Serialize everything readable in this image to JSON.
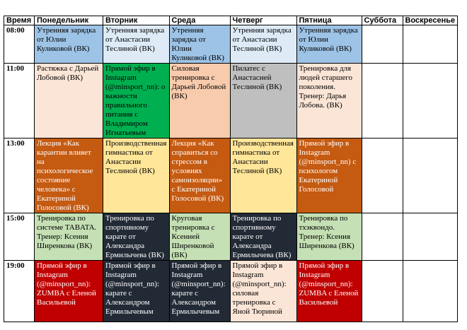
{
  "header": {
    "time": "Время",
    "days": [
      "Понедельник",
      "Вторник",
      "Среда",
      "Четверг",
      "Пятница",
      "Суббота",
      "Воскресенье"
    ]
  },
  "rows": [
    {
      "time": "08:00",
      "cells": [
        {
          "text": "Утренняя зарядка от Юлии Куликовой (ВК)",
          "color": "#9dc3e6"
        },
        {
          "text": "Утренняя зарядка от Анастасии Теслиной (ВК)",
          "color": "#deebf7"
        },
        {
          "text": "Утренняя зарядка от Юлии Куликовой (ВК)",
          "color": "#9dc3e6"
        },
        {
          "text": "Утренняя зарядка от Анастасии Теслиной (ВК)",
          "color": "#deebf7"
        },
        {
          "text": "Утренняя зарядка от Юлии Куликовой (ВК)",
          "color": "#9dc3e6"
        },
        {
          "text": "",
          "color": "#ffffff"
        },
        {
          "text": "",
          "color": "#ffffff"
        }
      ]
    },
    {
      "time": "11:00",
      "cells": [
        {
          "text": "Растяжка с Дарьей Лобовой (ВК)",
          "color": "#fbe5d6"
        },
        {
          "text": "Прямой эфир в Instagram (@minsport_nn): о важности правильного питания с Владимиром Игнатьевым",
          "color": "#00b050"
        },
        {
          "text": "Силовая тренировка с Дарьей Лобовой (ВК)",
          "color": "#f8cbad"
        },
        {
          "text": "Пилатес с Анастасией Теслиной (ВК)",
          "color": "#bfbfbf"
        },
        {
          "text": "Тренировка для людей старшего поколения. Тренер: Дарья Лобова. (ВК)",
          "color": "#fbe5d6"
        },
        {
          "text": "",
          "color": "#ffffff"
        },
        {
          "text": "",
          "color": "#ffffff"
        }
      ]
    },
    {
      "time": "13:00",
      "cells": [
        {
          "text": "Лекция «Как карантин влияет на психологическое состояние человека» с Екатериной Голосовой (ВК)",
          "color": "#c55a11"
        },
        {
          "text": "Производственная гимнастика от Анастасии Теслиной (ВК)",
          "color": "#ffe699"
        },
        {
          "text": "Лекция «Как справиться со стрессом в условиях самоизоляции» с Екатериной Голосовой (ВК)",
          "color": "#c55a11"
        },
        {
          "text": "Производственная гимнастика от Анастасии Теслиной (ВК)",
          "color": "#ffe699"
        },
        {
          "text": "Прямой эфир в Instagram (@minsport_nn) с психологом Екатериной Голосовой",
          "color": "#c55a11"
        },
        {
          "text": "",
          "color": "#ffffff"
        },
        {
          "text": "",
          "color": "#ffffff"
        }
      ]
    },
    {
      "time": "15:00",
      "cells": [
        {
          "text": "Тренировка по системе TABATA. Тренер: Ксения Ширенкова (ВК)",
          "color": "#c5e0b4"
        },
        {
          "text": "Тренировка по спортивному карате от Александра Ермилычева (ВК)",
          "color": "#222a35"
        },
        {
          "text": "Круговая тренировка с Ксенией Ширенковой (ВК)",
          "color": "#c5e0b4"
        },
        {
          "text": "Тренировка по спортивному карате от Александра Ермилычева (ВК)",
          "color": "#222a35"
        },
        {
          "text": "Тренировка по тхэквондо. Тренер: Ксения Ширенкова (ВК)",
          "color": "#c5e0b4"
        },
        {
          "text": "",
          "color": "#ffffff"
        },
        {
          "text": "",
          "color": "#ffffff"
        }
      ]
    },
    {
      "time": "19:00",
      "cells": [
        {
          "text": "Прямой эфир в Instagram (@minsport_nn): ZUMBA с Еленой Васильевой",
          "color": "#c00000"
        },
        {
          "text": "Прямой эфир в Instagram (@minsport_nn): карате с Александром Ермилычевым",
          "color": "#222a35"
        },
        {
          "text": "Прямой эфир в Instagram (@minsport_nn): карате с Александром Ермилычевым",
          "color": "#222a35"
        },
        {
          "text": "Прямой эфир в Instagram (@minsport_nn): силовая тренировка с Яной Тюриной",
          "color": "#fbe5d6"
        },
        {
          "text": "Прямой эфир в Instagram (@minsport_nn): ZUMBA с Еленой Васильевой",
          "color": "#c00000"
        },
        {
          "text": "",
          "color": "#ffffff"
        },
        {
          "text": "",
          "color": "#ffffff"
        }
      ]
    }
  ]
}
